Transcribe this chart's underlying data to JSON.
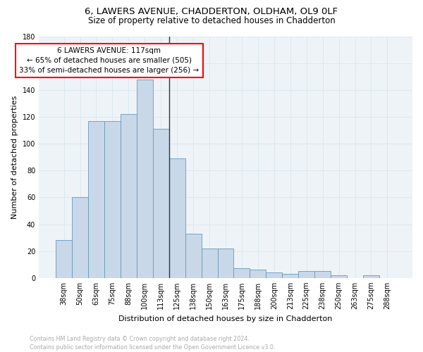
{
  "title1": "6, LAWERS AVENUE, CHADDERTON, OLDHAM, OL9 0LF",
  "title2": "Size of property relative to detached houses in Chadderton",
  "xlabel": "Distribution of detached houses by size in Chadderton",
  "ylabel": "Number of detached properties",
  "categories": [
    "38sqm",
    "50sqm",
    "63sqm",
    "75sqm",
    "88sqm",
    "100sqm",
    "113sqm",
    "125sqm",
    "138sqm",
    "150sqm",
    "163sqm",
    "175sqm",
    "188sqm",
    "200sqm",
    "213sqm",
    "225sqm",
    "238sqm",
    "250sqm",
    "263sqm",
    "275sqm",
    "288sqm"
  ],
  "values": [
    28,
    60,
    117,
    117,
    122,
    148,
    111,
    89,
    33,
    22,
    22,
    7,
    6,
    4,
    3,
    5,
    5,
    2,
    0,
    2,
    0
  ],
  "bar_color": "#c8d8e8",
  "bar_edge_color": "#6699bb",
  "vline_x_index": 6,
  "annotation_text": "6 LAWERS AVENUE: 117sqm\n← 65% of detached houses are smaller (505)\n33% of semi-detached houses are larger (256) →",
  "annotation_box_color": "white",
  "annotation_box_edge_color": "red",
  "ylim": [
    0,
    180
  ],
  "yticks": [
    0,
    20,
    40,
    60,
    80,
    100,
    120,
    140,
    160,
    180
  ],
  "grid_color": "#dce8f0",
  "bg_color": "#eef3f8",
  "footer": "Contains HM Land Registry data © Crown copyright and database right 2024.\nContains public sector information licensed under the Open Government Licence v3.0.",
  "footer_color": "#aaaaaa",
  "title1_fontsize": 9.5,
  "title2_fontsize": 8.5,
  "xlabel_fontsize": 8,
  "ylabel_fontsize": 8,
  "tick_fontsize": 7,
  "ann_fontsize": 7.5,
  "footer_fontsize": 5.8
}
